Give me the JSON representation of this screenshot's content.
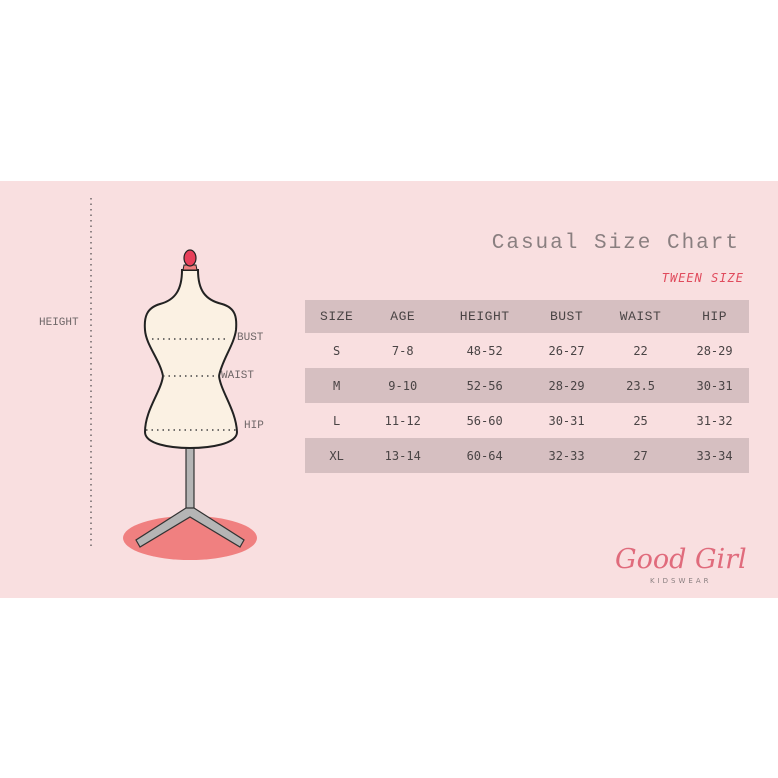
{
  "title": "Casual Size Chart",
  "subtitle": "TWEEN SIZE",
  "table": {
    "headers": [
      "SIZE",
      "AGE",
      "HEIGHT",
      "BUST",
      "WAIST",
      "HIP"
    ],
    "rows": [
      [
        "S",
        "7-8",
        "48-52",
        "26-27",
        "22",
        "28-29"
      ],
      [
        "M",
        "9-10",
        "52-56",
        "28-29",
        "23.5",
        "30-31"
      ],
      [
        "L",
        "11-12",
        "56-60",
        "30-31",
        "25",
        "31-32"
      ],
      [
        "XL",
        "13-14",
        "60-64",
        "32-33",
        "27",
        "33-34"
      ]
    ]
  },
  "figure": {
    "height_label": "HEIGHT",
    "bust_label": "BUST",
    "waist_label": "WAIST",
    "hip_label": "HIP"
  },
  "brand": {
    "name": "Good Girl",
    "tagline": "KIDSWEAR"
  },
  "colors": {
    "background": "#f9dfe0",
    "row_shade": "#d6bfc1",
    "accent": "#e04a5c",
    "mannequin": "#fbf1e3",
    "stand_base": "#f08080"
  }
}
